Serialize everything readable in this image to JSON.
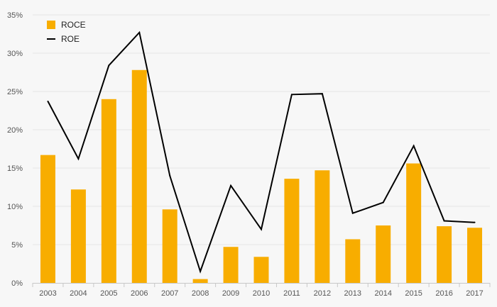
{
  "chart_data": {
    "type": "bar",
    "categories": [
      "2003",
      "2004",
      "2005",
      "2006",
      "2007",
      "2008",
      "2009",
      "2010",
      "2011",
      "2012",
      "2013",
      "2014",
      "2015",
      "2016",
      "2017"
    ],
    "series": [
      {
        "name": "ROCE",
        "type": "bar",
        "color": "#f8ad00",
        "values": [
          16.7,
          12.2,
          24.0,
          27.8,
          9.6,
          0.5,
          4.7,
          3.4,
          13.6,
          14.7,
          5.7,
          7.5,
          15.6,
          7.4,
          7.2
        ]
      },
      {
        "name": "ROE",
        "type": "line",
        "color": "#000000",
        "values": [
          23.7,
          16.2,
          28.4,
          32.7,
          14.0,
          1.5,
          12.7,
          7.0,
          24.6,
          24.7,
          9.1,
          10.5,
          17.9,
          8.1,
          7.9
        ]
      }
    ],
    "y_ticks": [
      "0%",
      "5%",
      "10%",
      "15%",
      "20%",
      "25%",
      "30%",
      "35%"
    ],
    "ylim": [
      0,
      35
    ],
    "y_unit": "%",
    "grid": true,
    "legend_position": "top-left",
    "title": "",
    "xlabel": "",
    "ylabel": ""
  }
}
